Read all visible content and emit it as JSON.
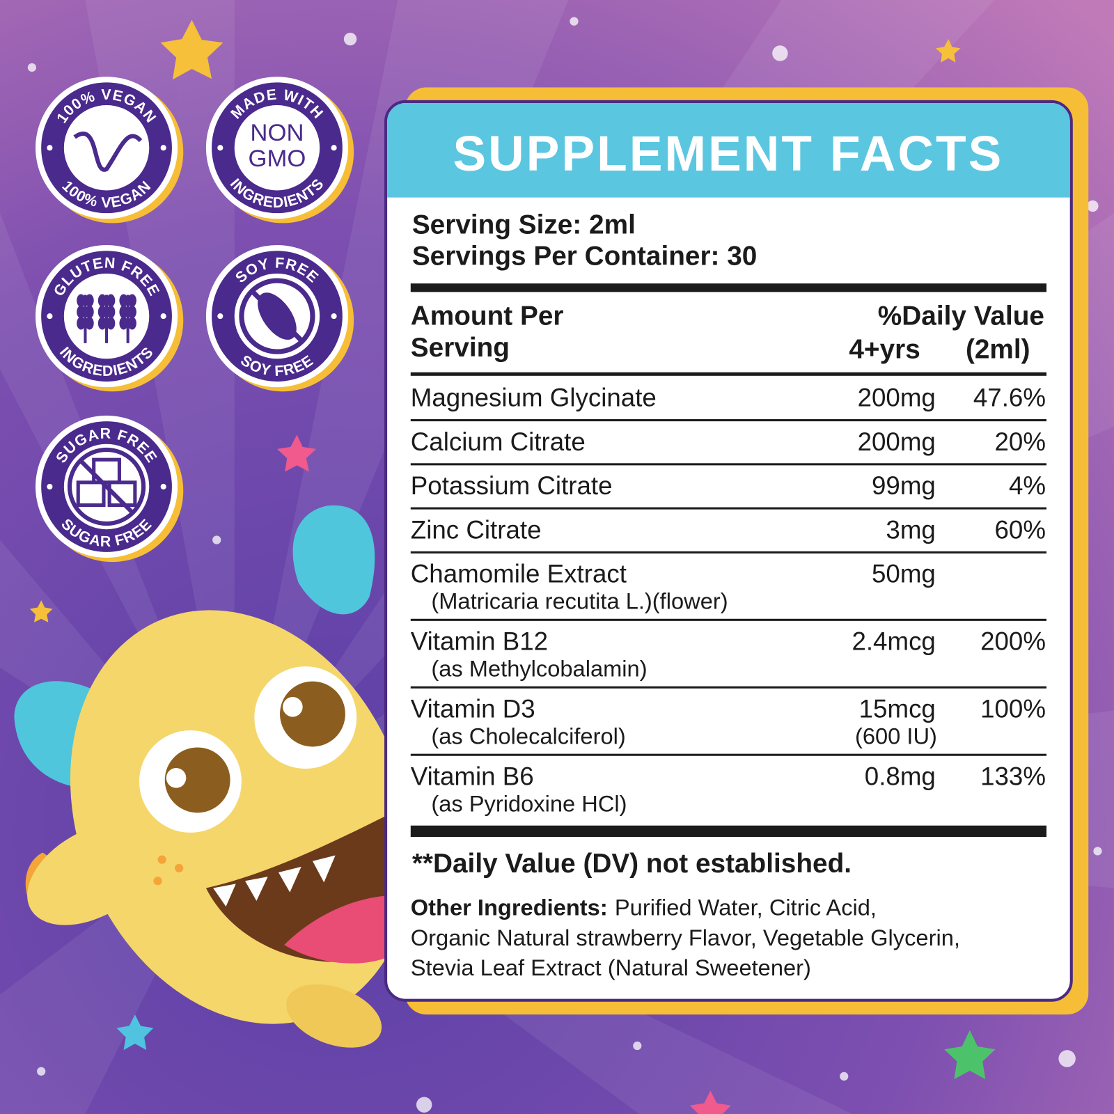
{
  "badges": [
    {
      "top": "100% VEGAN",
      "bottom": "100% VEGAN"
    },
    {
      "top": "MADE WITH",
      "center": [
        "NON",
        "GMO"
      ],
      "bottom": "INGREDIENTS"
    },
    {
      "top": "GLUTEN FREE",
      "bottom": "INGREDIENTS"
    },
    {
      "top": "SOY FREE",
      "bottom": "SOY FREE"
    },
    {
      "top": "SUGAR FREE",
      "bottom": "SUGAR FREE"
    }
  ],
  "facts": {
    "title": "SUPPLEMENT FACTS",
    "serving_size": "Serving Size: 2ml",
    "servings_per_container": "Servings Per Container: 30",
    "header": {
      "amount": [
        "Amount Per",
        "Serving"
      ],
      "daily_value": "%Daily Value",
      "age": "4+yrs",
      "serving": "(2ml)"
    },
    "rows": [
      {
        "name": "Magnesium Glycinate",
        "amount": "200mg",
        "dv": "47.6%"
      },
      {
        "name": "Calcium Citrate",
        "amount": "200mg",
        "dv": "20%"
      },
      {
        "name": "Potassium Citrate",
        "amount": "99mg",
        "dv": "4%"
      },
      {
        "name": "Zinc Citrate",
        "amount": "3mg",
        "dv": "60%"
      },
      {
        "name": "Chamomile Extract",
        "sub": "(Matricaria recutita L.)(flower)",
        "amount": "50mg"
      },
      {
        "name": "Vitamin B12",
        "sub": "(as Methylcobalamin)",
        "amount": "2.4mcg",
        "dv": "200%"
      },
      {
        "name": "Vitamin D3",
        "sub": "(as Cholecalciferol)",
        "amount": "15mcg",
        "amount_sub": "(600 IU)",
        "dv": "100%"
      },
      {
        "name": "Vitamin B6",
        "sub": "(as Pyridoxine HCl)",
        "amount": "0.8mg",
        "dv": "133%"
      }
    ],
    "footnote": "**Daily Value (DV) not established.",
    "other_label": "Other Ingredients:",
    "other_lines": [
      "Purified Water, Citric Acid,",
      "Organic Natural strawberry Flavor, Vegetable Glycerin,",
      "Stevia Leaf Extract (Natural Sweetener)"
    ]
  }
}
